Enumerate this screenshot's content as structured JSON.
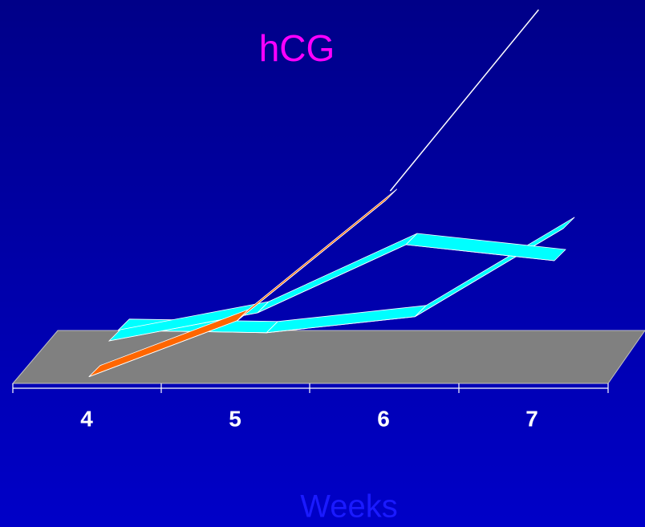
{
  "chart_data": {
    "type": "line",
    "title": "hCG",
    "x_label": "Weeks",
    "categories": [
      "4",
      "5",
      "6",
      "7"
    ],
    "series": [
      {
        "color": "#00ffff",
        "values": [
          20,
          17,
          37,
          147
        ]
      },
      {
        "color": "#00ffff",
        "values": [
          20,
          55,
          140,
          120
        ]
      },
      {
        "color": "#ffffff",
        "values": [
          null,
          null,
          230,
          456
        ]
      },
      {
        "color": "#ff6600",
        "values": [
          5,
          75,
          225,
          null
        ]
      }
    ]
  }
}
